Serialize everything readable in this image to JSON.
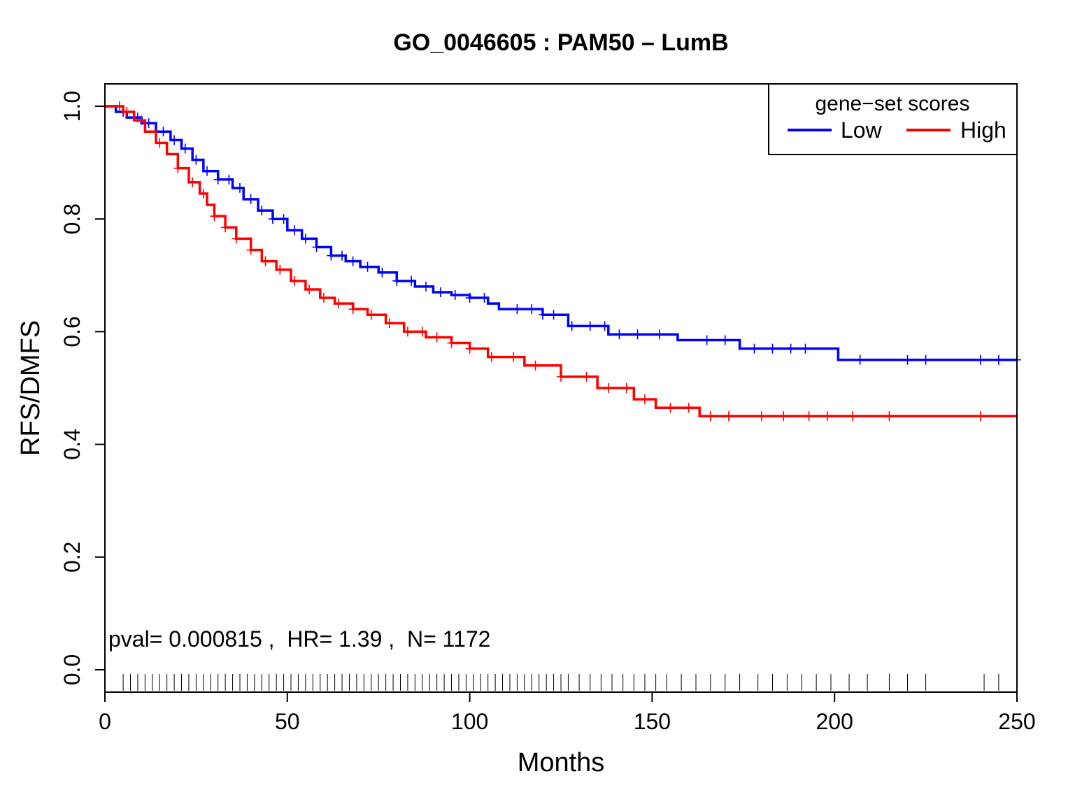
{
  "chart_data": {
    "type": "line",
    "title": "GO_0046605 : PAM50 – LumB",
    "xlabel": "Months",
    "ylabel": "RFS/DMFS",
    "xlim": [
      0,
      250
    ],
    "ylim": [
      0,
      1
    ],
    "x_ticks": [
      0,
      50,
      100,
      150,
      200,
      250
    ],
    "x_tick_labels": [
      "0",
      "50",
      "100",
      "150",
      "200",
      "250"
    ],
    "y_ticks": [
      0,
      0.2,
      0.4,
      0.6,
      0.8,
      1
    ],
    "y_tick_labels": [
      "0.0",
      "0.2",
      "0.4",
      "0.6",
      "0.8",
      "1.0"
    ],
    "grid": false,
    "legend": {
      "title": "gene−set scores",
      "placement": "top-right",
      "entries": [
        {
          "label": "Low",
          "color": "#0000ff"
        },
        {
          "label": "High",
          "color": "#ff0000"
        }
      ]
    },
    "annotation": "pval= 0.000815 ,  HR= 1.39 ,  N= 1172",
    "series": [
      {
        "name": "Low",
        "color": "#0000ff",
        "x": [
          0,
          3,
          6,
          10,
          14,
          18,
          21,
          24,
          27,
          31,
          35,
          38,
          42,
          46,
          50,
          54,
          58,
          62,
          66,
          70,
          75,
          80,
          85,
          90,
          95,
          100,
          105,
          108,
          120,
          127,
          138,
          157,
          174,
          201,
          250
        ],
        "y": [
          1.0,
          0.99,
          0.98,
          0.97,
          0.955,
          0.94,
          0.925,
          0.905,
          0.885,
          0.87,
          0.855,
          0.835,
          0.815,
          0.8,
          0.78,
          0.765,
          0.75,
          0.735,
          0.725,
          0.715,
          0.705,
          0.69,
          0.68,
          0.67,
          0.665,
          0.66,
          0.65,
          0.64,
          0.63,
          0.61,
          0.595,
          0.585,
          0.57,
          0.55,
          0.55
        ],
        "censor_x": [
          5,
          9,
          12,
          16,
          19,
          22,
          25,
          28,
          31,
          34,
          37,
          40,
          43,
          46,
          49,
          52,
          55,
          58,
          62,
          65,
          68,
          72,
          76,
          80,
          84,
          88,
          92,
          96,
          100,
          104,
          113,
          117,
          120,
          123,
          128,
          133,
          137,
          141,
          146,
          152,
          165,
          170,
          178,
          183,
          188,
          192,
          207,
          220,
          225,
          240,
          245,
          250
        ]
      },
      {
        "name": "High",
        "color": "#ff0000",
        "x": [
          0,
          5,
          8,
          11,
          14,
          17,
          20,
          23,
          26,
          28,
          30,
          33,
          36,
          40,
          43,
          47,
          51,
          55,
          59,
          63,
          68,
          72,
          77,
          82,
          88,
          95,
          100,
          105,
          115,
          125,
          135,
          145,
          151,
          163,
          250
        ],
        "y": [
          1.0,
          0.99,
          0.975,
          0.955,
          0.935,
          0.915,
          0.89,
          0.865,
          0.845,
          0.825,
          0.805,
          0.785,
          0.765,
          0.745,
          0.725,
          0.71,
          0.69,
          0.675,
          0.66,
          0.65,
          0.64,
          0.63,
          0.615,
          0.6,
          0.59,
          0.58,
          0.57,
          0.555,
          0.54,
          0.52,
          0.5,
          0.48,
          0.465,
          0.45,
          0.45
        ],
        "censor_x": [
          4,
          6,
          10,
          15,
          20,
          24,
          27,
          30,
          33,
          36,
          40,
          44,
          48,
          52,
          56,
          60,
          64,
          68,
          73,
          78,
          83,
          87,
          91,
          95,
          100,
          106,
          112,
          118,
          125,
          132,
          138,
          143,
          148,
          155,
          160,
          166,
          171,
          180,
          186,
          193,
          198,
          205,
          215,
          240
        ]
      }
    ],
    "rug_x": [
      5,
      7,
      9,
      11,
      13,
      15,
      17,
      19,
      21,
      23,
      25,
      27,
      29,
      31,
      33,
      35,
      37,
      39,
      41,
      43,
      45,
      47,
      49,
      51,
      53,
      55,
      57,
      59,
      61,
      63,
      65,
      67,
      69,
      71,
      73,
      75,
      77,
      79,
      81,
      83,
      85,
      87,
      89,
      91,
      93,
      95,
      97,
      99,
      101,
      103,
      105,
      107,
      109,
      111,
      113,
      115,
      117,
      119,
      121,
      123,
      125,
      127,
      130,
      133,
      136,
      139,
      142,
      145,
      148,
      151,
      154,
      158,
      162,
      166,
      170,
      174,
      179,
      183,
      187,
      191,
      195,
      199,
      204,
      209,
      215,
      220,
      225,
      241,
      245,
      250
    ]
  }
}
